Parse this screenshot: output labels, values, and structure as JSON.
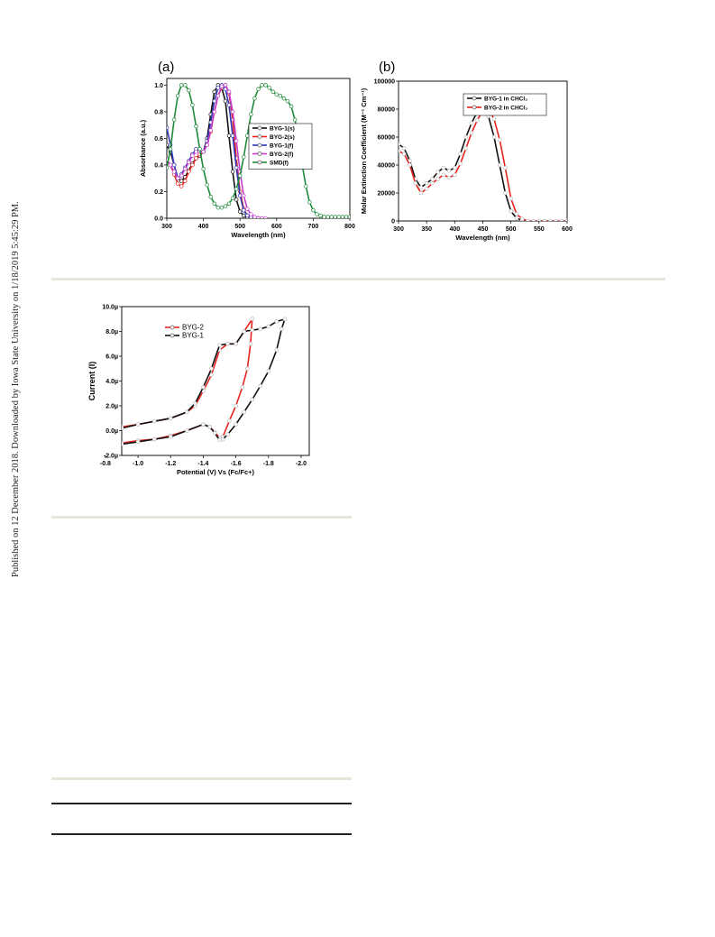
{
  "sidebar_note": "Published on 12 December 2018. Downloaded by Iowa State University on 1/18/2019 5:45:29 PM.",
  "colors": {
    "black": "#111111",
    "red": "#e8231f",
    "blue": "#2f39b5",
    "magenta": "#c43ccd",
    "green": "#1f8a3a",
    "rule": "#e8e6d8"
  },
  "chart_data": [
    {
      "type": "line",
      "panel": "(a)",
      "title": "",
      "xlabel": "Wavelength (nm)",
      "ylabel": "Absorbance (a.u.)",
      "xlim": [
        300,
        800
      ],
      "ylim": [
        0.0,
        1.05
      ],
      "xticks": [
        300,
        400,
        500,
        600,
        700,
        800
      ],
      "xtick_labels": [
        "300",
        "400",
        "500",
        "600",
        "700",
        "800"
      ],
      "yticks": [
        0.0,
        0.2,
        0.4,
        0.6,
        0.8,
        1.0
      ],
      "ytick_labels": [
        "0.0",
        "0.2",
        "0.4",
        "0.6",
        "0.8",
        "1.0"
      ],
      "legend_position": "right-center",
      "series": [
        {
          "name": "BYG-1(s)",
          "color": "#111111",
          "x": [
            300,
            310,
            320,
            330,
            340,
            350,
            360,
            370,
            380,
            390,
            400,
            410,
            420,
            430,
            440,
            450,
            460,
            470,
            480,
            490,
            500,
            510,
            520,
            530,
            540,
            550
          ],
          "y": [
            0.55,
            0.5,
            0.4,
            0.3,
            0.28,
            0.31,
            0.36,
            0.41,
            0.45,
            0.47,
            0.5,
            0.6,
            0.78,
            0.95,
            1.0,
            0.98,
            0.88,
            0.62,
            0.35,
            0.14,
            0.05,
            0.02,
            0.01,
            0.0,
            0.0,
            0.0
          ]
        },
        {
          "name": "BYG-2(s)",
          "color": "#e8231f",
          "x": [
            310,
            320,
            330,
            340,
            350,
            360,
            370,
            380,
            390,
            400,
            410,
            420,
            430,
            440,
            450,
            460,
            470,
            480,
            490,
            500,
            510,
            520,
            530,
            540,
            550
          ],
          "y": [
            0.4,
            0.33,
            0.26,
            0.24,
            0.28,
            0.35,
            0.4,
            0.45,
            0.48,
            0.5,
            0.55,
            0.65,
            0.8,
            0.92,
            0.98,
            1.0,
            0.94,
            0.74,
            0.45,
            0.2,
            0.07,
            0.02,
            0.0,
            0.0,
            0.0
          ]
        },
        {
          "name": "BYG-1(f)",
          "color": "#2f39b5",
          "x": [
            300,
            310,
            320,
            330,
            340,
            350,
            360,
            370,
            380,
            390,
            400,
            410,
            420,
            430,
            440,
            450,
            460,
            470,
            480,
            490,
            500,
            510,
            520,
            530,
            540,
            550
          ],
          "y": [
            0.68,
            0.55,
            0.4,
            0.3,
            0.33,
            0.38,
            0.43,
            0.48,
            0.52,
            0.5,
            0.5,
            0.58,
            0.72,
            0.88,
            0.98,
            1.0,
            0.97,
            0.85,
            0.62,
            0.38,
            0.17,
            0.06,
            0.02,
            0.01,
            0.0,
            0.0
          ]
        },
        {
          "name": "BYG-2(f)",
          "color": "#c43ccd",
          "x": [
            300,
            310,
            320,
            330,
            340,
            350,
            360,
            370,
            380,
            390,
            400,
            410,
            420,
            430,
            440,
            450,
            460,
            470,
            480,
            490,
            500,
            510,
            520,
            530,
            540,
            550,
            560,
            570
          ],
          "y": [
            0.44,
            0.4,
            0.35,
            0.3,
            0.32,
            0.37,
            0.42,
            0.47,
            0.5,
            0.5,
            0.5,
            0.55,
            0.66,
            0.8,
            0.92,
            0.99,
            1.0,
            0.95,
            0.8,
            0.58,
            0.35,
            0.17,
            0.07,
            0.03,
            0.01,
            0.0,
            0.0,
            0.0
          ]
        },
        {
          "name": "SMD(f)",
          "color": "#1f8a3a",
          "x": [
            300,
            310,
            320,
            330,
            340,
            350,
            360,
            370,
            380,
            390,
            400,
            410,
            420,
            430,
            440,
            450,
            460,
            470,
            480,
            490,
            500,
            510,
            520,
            530,
            540,
            550,
            560,
            570,
            580,
            590,
            600,
            610,
            620,
            630,
            640,
            650,
            660,
            670,
            680,
            690,
            700,
            710,
            720,
            730,
            740,
            750,
            760,
            770,
            780,
            790,
            800
          ],
          "y": [
            0.38,
            0.52,
            0.74,
            0.92,
            1.0,
            1.0,
            0.96,
            0.85,
            0.69,
            0.52,
            0.37,
            0.25,
            0.16,
            0.11,
            0.08,
            0.08,
            0.09,
            0.11,
            0.15,
            0.22,
            0.32,
            0.46,
            0.62,
            0.78,
            0.9,
            0.97,
            1.0,
            1.0,
            0.98,
            0.95,
            0.93,
            0.92,
            0.9,
            0.88,
            0.84,
            0.74,
            0.58,
            0.4,
            0.24,
            0.12,
            0.06,
            0.03,
            0.02,
            0.01,
            0.01,
            0.01,
            0.01,
            0.01,
            0.01,
            0.01,
            0.01
          ]
        }
      ]
    },
    {
      "type": "line",
      "panel": "(b)",
      "title": "",
      "xlabel": "Wavelength (nm)",
      "ylabel": "Molar Extinction Coefficient (M⁻¹ Cm⁻¹)",
      "xlim": [
        300,
        600
      ],
      "ylim": [
        0,
        100000
      ],
      "xticks": [
        300,
        350,
        400,
        450,
        500,
        550,
        600
      ],
      "xtick_labels": [
        "300",
        "350",
        "400",
        "450",
        "500",
        "550",
        "600"
      ],
      "yticks": [
        0,
        20000,
        40000,
        60000,
        80000,
        100000
      ],
      "ytick_labels": [
        "0",
        "20000",
        "40000",
        "60000",
        "80000",
        "100000"
      ],
      "legend_position": "top-right",
      "series": [
        {
          "name": "BYG-1 in CHCl₃",
          "color": "#111111",
          "x": [
            300,
            310,
            320,
            330,
            340,
            350,
            360,
            370,
            380,
            390,
            400,
            410,
            420,
            430,
            440,
            450,
            460,
            470,
            480,
            490,
            500,
            510,
            520,
            530,
            540,
            550,
            560,
            570,
            580,
            590,
            600
          ],
          "y": [
            55000,
            52000,
            43000,
            30000,
            24000,
            27000,
            30000,
            35000,
            38000,
            36000,
            38000,
            48000,
            60000,
            70000,
            78000,
            80000,
            75000,
            60000,
            40000,
            20000,
            7000,
            2000,
            500,
            0,
            0,
            0,
            0,
            0,
            0,
            0,
            0
          ]
        },
        {
          "name": "BYG-2 in CHCl₃",
          "color": "#e8231f",
          "x": [
            300,
            310,
            320,
            330,
            340,
            350,
            360,
            370,
            380,
            390,
            400,
            410,
            420,
            430,
            440,
            450,
            460,
            470,
            480,
            490,
            500,
            510,
            520,
            530,
            540,
            550,
            560,
            570,
            580,
            590,
            600
          ],
          "y": [
            50000,
            48000,
            40000,
            27000,
            20000,
            23000,
            27000,
            30000,
            33000,
            31000,
            33000,
            41000,
            52000,
            63000,
            72000,
            79000,
            80000,
            73000,
            58000,
            38000,
            16000,
            5000,
            1500,
            0,
            0,
            0,
            0,
            0,
            0,
            0,
            0
          ]
        }
      ]
    },
    {
      "type": "line",
      "panel": "",
      "title": "",
      "xlabel": "Potential (V) Vs (Fc/Fc+)",
      "ylabel": "Current (I)",
      "xlim": [
        -0.9,
        -2.05
      ],
      "ylim": [
        -2.0,
        10.0
      ],
      "xticks": [
        -0.8,
        -1.0,
        -1.2,
        -1.4,
        -1.6,
        -1.8,
        -2.0
      ],
      "xtick_labels": [
        "-0.8",
        "-1.0",
        "-1.2",
        "-1.4",
        "-1.6",
        "-1.8",
        "-2.0"
      ],
      "yticks": [
        -2,
        0,
        2,
        4,
        6,
        8,
        10
      ],
      "ytick_labels": [
        "-2.0µ",
        "0.0µ",
        "2.0µ",
        "4.0µ",
        "6.0µ",
        "8.0µ",
        "10.0µ"
      ],
      "legend_position": "top-left",
      "series": [
        {
          "name": "BYG-2",
          "color": "#e8231f",
          "x": [
            -0.9,
            -1.0,
            -1.1,
            -1.2,
            -1.3,
            -1.35,
            -1.4,
            -1.45,
            -1.5,
            -1.55,
            -1.6,
            -1.65,
            -1.7,
            -1.69,
            -1.67,
            -1.64,
            -1.6,
            -1.56,
            -1.52,
            -1.5,
            -1.47,
            -1.44,
            -1.4,
            -1.3,
            -1.2,
            -1.1,
            -1.0,
            -0.9
          ],
          "y": [
            0.3,
            0.5,
            0.75,
            1.0,
            1.5,
            2.0,
            3.2,
            4.5,
            6.5,
            7.0,
            7.0,
            8.0,
            9.0,
            7.0,
            5.0,
            3.5,
            2.0,
            0.8,
            -0.5,
            -0.6,
            -0.1,
            0.3,
            0.5,
            0.0,
            -0.4,
            -0.7,
            -0.8,
            -1.0
          ]
        },
        {
          "name": "BYG-1",
          "color": "#111111",
          "x": [
            -0.9,
            -1.0,
            -1.1,
            -1.2,
            -1.3,
            -1.35,
            -1.4,
            -1.45,
            -1.5,
            -1.55,
            -1.6,
            -1.65,
            -1.7,
            -1.75,
            -1.8,
            -1.85,
            -1.9,
            -1.88,
            -1.85,
            -1.8,
            -1.75,
            -1.7,
            -1.65,
            -1.6,
            -1.55,
            -1.52,
            -1.5,
            -1.47,
            -1.44,
            -1.4,
            -1.3,
            -1.2,
            -1.1,
            -1.0,
            -0.9
          ],
          "y": [
            0.2,
            0.5,
            0.75,
            1.0,
            1.5,
            2.2,
            3.5,
            5.0,
            6.9,
            7.0,
            7.0,
            8.0,
            8.1,
            8.2,
            8.4,
            8.8,
            9.0,
            8.2,
            6.5,
            4.8,
            3.6,
            2.5,
            1.5,
            0.5,
            -0.3,
            -0.7,
            -0.75,
            -0.2,
            0.3,
            0.5,
            0.0,
            -0.5,
            -0.7,
            -0.9,
            -1.1
          ]
        }
      ]
    }
  ]
}
